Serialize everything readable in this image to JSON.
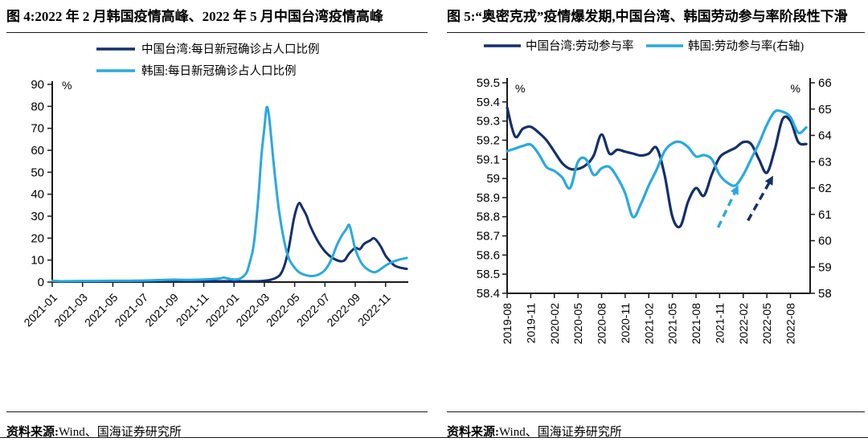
{
  "colors": {
    "navy": "#13306d",
    "blue": "#29a9e1",
    "axis": "#1a1a1a",
    "text": "#000000"
  },
  "left_panel": {
    "title": "图 4:2022 年 2 月韩国疫情高峰、2022 年 5 月中国台湾疫情高峰",
    "source_label": "资料来源:",
    "source_value": "Wind、国海证券研究所"
  },
  "right_panel": {
    "title": "图 5:“奥密克戎”疫情爆发期,中国台湾、韩国劳动参与率阶段性下滑",
    "source_label": "资料来源:",
    "source_value": "Wind、国海证券研究所"
  },
  "chart_data": [
    {
      "type": "line",
      "title": "2022年2月韩国疫情高峰、2022年5月中国台湾疫情高峰",
      "unit_label": "%",
      "ylim": [
        0,
        90
      ],
      "y_ticks": [
        "0",
        "10",
        "20",
        "30",
        "40",
        "50",
        "60",
        "70",
        "80",
        "90"
      ],
      "x_tick_labels": [
        "2021-01",
        "2021-03",
        "2021-05",
        "2021-07",
        "2021-09",
        "2021-11",
        "2022-01",
        "2022-03",
        "2022-05",
        "2022-07",
        "2022-09",
        "2022-11"
      ],
      "x_tick_months": [
        0,
        2,
        4,
        6,
        8,
        10,
        12,
        14,
        16,
        18,
        20,
        22
      ],
      "x_range_months": [
        0,
        23.5
      ],
      "legend_position": "top-left-inside",
      "grid": false,
      "series": [
        {
          "name": "中国台湾:每日新冠确诊占人口比例",
          "color_key": "navy",
          "points": [
            [
              0,
              0.2
            ],
            [
              1,
              0.15
            ],
            [
              2,
              0.15
            ],
            [
              3,
              0.2
            ],
            [
              4,
              0.4
            ],
            [
              5,
              0.35
            ],
            [
              6,
              0.2
            ],
            [
              7,
              0.15
            ],
            [
              8,
              0.12
            ],
            [
              9,
              0.1
            ],
            [
              10,
              0.1
            ],
            [
              11,
              0.1
            ],
            [
              12,
              0.15
            ],
            [
              13,
              0.2
            ],
            [
              13.5,
              0.3
            ],
            [
              14,
              0.6
            ],
            [
              14.5,
              1.2
            ],
            [
              15,
              3
            ],
            [
              15.3,
              7
            ],
            [
              15.6,
              15
            ],
            [
              15.9,
              27
            ],
            [
              16.1,
              33
            ],
            [
              16.3,
              36
            ],
            [
              16.5,
              34
            ],
            [
              16.8,
              30
            ],
            [
              17,
              26
            ],
            [
              17.5,
              19
            ],
            [
              18,
              14
            ],
            [
              18.5,
              11
            ],
            [
              19,
              9.5
            ],
            [
              19.3,
              10
            ],
            [
              19.6,
              13
            ],
            [
              20,
              15.5
            ],
            [
              20.3,
              15
            ],
            [
              20.6,
              17.5
            ],
            [
              21,
              19
            ],
            [
              21.2,
              20
            ],
            [
              21.4,
              19
            ],
            [
              21.7,
              16
            ],
            [
              22,
              12
            ],
            [
              22.3,
              9.5
            ],
            [
              22.6,
              7.5
            ],
            [
              23,
              6.5
            ],
            [
              23.4,
              6
            ]
          ]
        },
        {
          "name": "韩国:每日新冠确诊占人口比例",
          "color_key": "blue",
          "points": [
            [
              0,
              0.6
            ],
            [
              0.5,
              0.4
            ],
            [
              1,
              0.4
            ],
            [
              2,
              0.5
            ],
            [
              3,
              0.5
            ],
            [
              4,
              0.6
            ],
            [
              5,
              0.6
            ],
            [
              6,
              0.7
            ],
            [
              7,
              0.9
            ],
            [
              8,
              1.1
            ],
            [
              9,
              1.0
            ],
            [
              10,
              1.2
            ],
            [
              11,
              1.6
            ],
            [
              11.3,
              2.0
            ],
            [
              11.6,
              1.6
            ],
            [
              12,
              1.2
            ],
            [
              12.4,
              1.6
            ],
            [
              12.8,
              4
            ],
            [
              13,
              8
            ],
            [
              13.3,
              17
            ],
            [
              13.6,
              38
            ],
            [
              13.8,
              57
            ],
            [
              14,
              70
            ],
            [
              14.15,
              79.5
            ],
            [
              14.3,
              76
            ],
            [
              14.45,
              66
            ],
            [
              14.6,
              55
            ],
            [
              14.8,
              42
            ],
            [
              15,
              31
            ],
            [
              15.3,
              19
            ],
            [
              15.6,
              11
            ],
            [
              16,
              6.5
            ],
            [
              16.4,
              4
            ],
            [
              17,
              2.8
            ],
            [
              17.5,
              3.2
            ],
            [
              18,
              5.5
            ],
            [
              18.4,
              10
            ],
            [
              18.8,
              17
            ],
            [
              19.1,
              21
            ],
            [
              19.4,
              24
            ],
            [
              19.6,
              26
            ],
            [
              19.8,
              21
            ],
            [
              20,
              15
            ],
            [
              20.3,
              10
            ],
            [
              20.6,
              7
            ],
            [
              21,
              5
            ],
            [
              21.3,
              4.5
            ],
            [
              21.6,
              5.5
            ],
            [
              22,
              7.5
            ],
            [
              22.4,
              9
            ],
            [
              22.8,
              10
            ],
            [
              23.4,
              11
            ]
          ]
        }
      ]
    },
    {
      "type": "line",
      "title": "“奥密克戎”疫情爆发期,中国台湾、韩国劳动参与率阶段性下滑",
      "dual_axis": true,
      "left_axis": {
        "unit_label": "%",
        "min": 58.4,
        "max": 59.5,
        "ticks": [
          "59.5",
          "59.4",
          "59.3",
          "59.2",
          "59.1",
          "59",
          "58.9",
          "58.8",
          "58.7",
          "58.6",
          "58.5",
          "58.4"
        ]
      },
      "right_axis": {
        "unit_label": "%",
        "min": 58,
        "max": 66,
        "ticks": [
          "66",
          "65",
          "64",
          "63",
          "62",
          "61",
          "60",
          "59",
          "58"
        ]
      },
      "x_tick_labels": [
        "2019-08",
        "2019-11",
        "2020-02",
        "2020-05",
        "2020-08",
        "2020-11",
        "2021-02",
        "2021-05",
        "2021-08",
        "2021-11",
        "2022-02",
        "2022-05",
        "2022-08"
      ],
      "x_tick_months": [
        0,
        3,
        6,
        9,
        12,
        15,
        18,
        21,
        24,
        27,
        30,
        33,
        36
      ],
      "x_range_months": [
        0,
        38.5
      ],
      "legend_position": "top-center",
      "grid": false,
      "series": [
        {
          "name": "中国台湾:劳动参与率",
          "axis": "left",
          "color_key": "navy",
          "values": [
            59.37,
            59.22,
            59.26,
            59.27,
            59.24,
            59.2,
            59.14,
            59.08,
            59.05,
            59.05,
            59.07,
            59.12,
            59.23,
            59.13,
            59.15,
            59.14,
            59.13,
            59.12,
            59.13,
            59.16,
            59.02,
            58.8,
            58.75,
            58.88,
            58.95,
            58.91,
            59.02,
            59.11,
            59.14,
            59.16,
            59.19,
            59.18,
            59.1,
            59.03,
            59.15,
            59.31,
            59.3,
            59.19,
            59.18
          ]
        },
        {
          "name": "韩国:劳动参与率(右轴)",
          "axis": "right",
          "color_key": "blue",
          "values": [
            63.4,
            63.5,
            63.6,
            63.65,
            63.3,
            62.8,
            62.65,
            62.4,
            62.0,
            63.0,
            63.1,
            62.5,
            62.75,
            62.8,
            62.4,
            61.8,
            60.9,
            61.4,
            62.1,
            62.7,
            63.4,
            63.7,
            63.75,
            63.55,
            63.2,
            63.25,
            63.1,
            62.5,
            62.2,
            62.1,
            62.5,
            63.1,
            63.7,
            64.4,
            64.9,
            64.9,
            64.7,
            64.1,
            64.3
          ]
        }
      ],
      "annotations": [
        {
          "type": "arrow",
          "color_key": "blue",
          "axis": "right",
          "from": [
            26.8,
            60.5
          ],
          "to": [
            29.2,
            62.0
          ]
        },
        {
          "type": "arrow",
          "color_key": "navy",
          "axis": "left",
          "from": [
            30.6,
            58.78
          ],
          "to": [
            33.6,
            59.0
          ]
        }
      ]
    }
  ]
}
